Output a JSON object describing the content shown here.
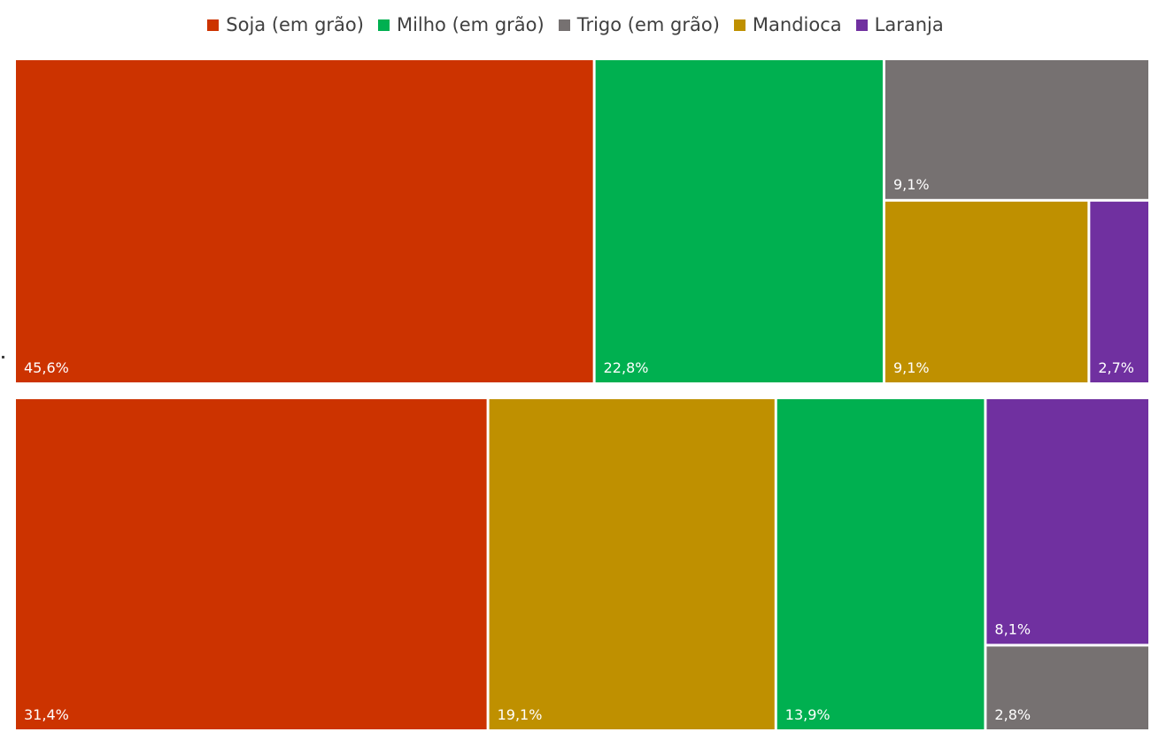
{
  "colors": {
    "Soja (em grão)": "#CC3300",
    "Milho (em grão)": "#00B050",
    "Trigo (em grão)": "#767171",
    "Mandioca": "#BF9000",
    "Laranja": "#7030A0"
  },
  "chart_data": {
    "type": "treemap",
    "legend": {
      "position": "top",
      "entries": [
        "Soja (em grão)",
        "Milho (em grão)",
        "Trigo (em grão)",
        "Mandioca",
        "Laranja"
      ]
    },
    "groups": [
      {
        "items": [
          {
            "category": "Soja (em grão)",
            "value": 45.6,
            "label": "45,6%"
          },
          {
            "category": "Milho (em grão)",
            "value": 22.8,
            "label": "22,8%"
          },
          {
            "category": "Trigo (em grão)",
            "value": 9.1,
            "label": "9,1%"
          },
          {
            "category": "Mandioca",
            "value": 9.1,
            "label": "9,1%"
          },
          {
            "category": "Laranja",
            "value": 2.7,
            "label": "2,7%"
          }
        ]
      },
      {
        "items": [
          {
            "category": "Soja (em grão)",
            "value": 31.4,
            "label": "31,4%"
          },
          {
            "category": "Mandioca",
            "value": 19.1,
            "label": "19,1%"
          },
          {
            "category": "Milho (em grão)",
            "value": 13.9,
            "label": "13,9%"
          },
          {
            "category": "Laranja",
            "value": 8.1,
            "label": "8,1%"
          },
          {
            "category": "Trigo (em grão)",
            "value": 2.8,
            "label": "2,8%"
          }
        ]
      }
    ]
  }
}
